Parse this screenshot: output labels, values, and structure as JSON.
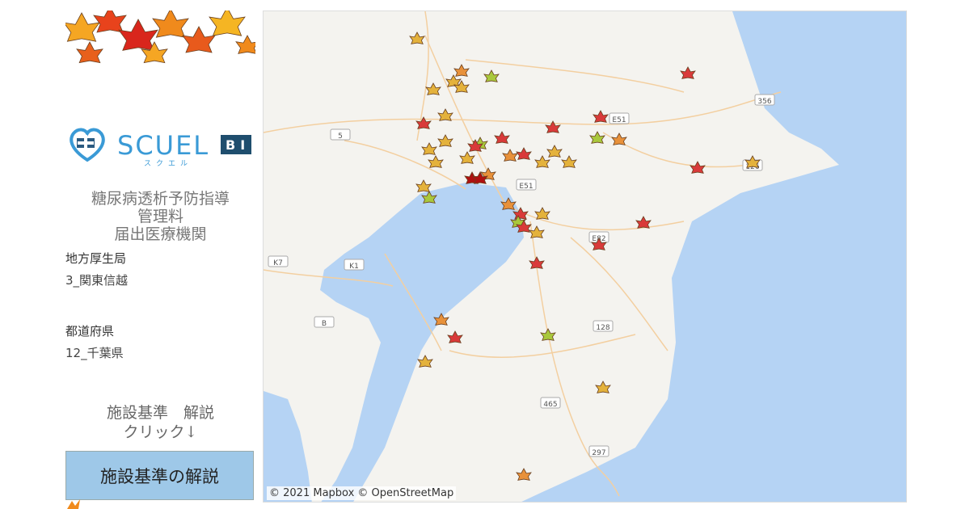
{
  "sidebar": {
    "logo": {
      "brand": "SCUEL",
      "kana": "スクエル",
      "badge": "BI"
    },
    "title_lines": [
      "糖尿病透析予防指導",
      "管理料",
      "届出医療機関"
    ],
    "filters": [
      {
        "label": "地方厚生局",
        "value": "3_関東信越"
      },
      {
        "label": "都道府県",
        "value": "12_千葉県"
      }
    ],
    "hint_lines": [
      "施設基準　解説",
      "クリック↓"
    ],
    "button_label": "施設基準の解説"
  },
  "map": {
    "attribution": "© 2021 Mapbox © OpenStreetMap",
    "road_labels": [
      "356",
      "E51",
      "126",
      "E51",
      "E82",
      "128",
      "465",
      "297",
      "K7",
      "K1",
      "B",
      "5"
    ],
    "marker_icon": "maple-leaf-icon",
    "marker_colors": {
      "red": "#d93a3a",
      "orange": "#e8913a",
      "yellow": "#e4b23c",
      "green": "#a9c83c",
      "darkred": "#b01010"
    },
    "colors": {
      "land": "#f4f3ef",
      "water": "#b5d3f4",
      "road": "#f3cfa0"
    }
  }
}
